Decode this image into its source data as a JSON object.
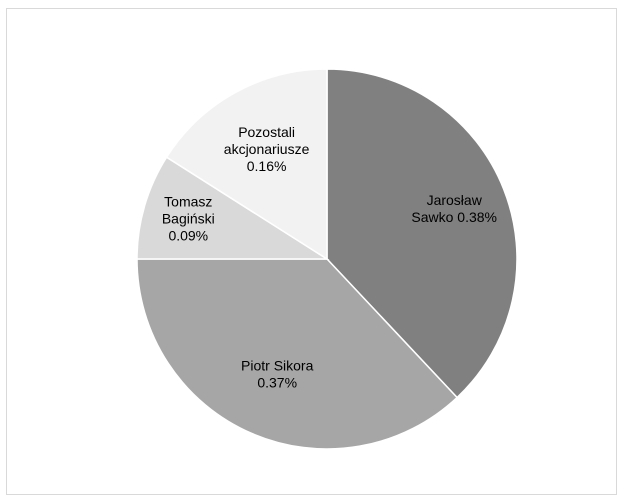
{
  "chart_data": {
    "type": "pie",
    "title": "",
    "categories": [
      "Jarosław Sawko",
      "Piotr Sikora",
      "Tomasz Bagiński",
      "Pozostali akcjonariusze"
    ],
    "values": [
      0.38,
      0.37,
      0.09,
      0.16
    ],
    "unit": "%",
    "colors": [
      "#808080",
      "#a6a6a6",
      "#d9d9d9",
      "#f2f2f2"
    ],
    "slice_border_color": "#ffffff",
    "start": "12 o'clock",
    "direction": "clockwise",
    "legend": "none",
    "data_labels": [
      [
        "Jarosław",
        "Sawko 0.38%"
      ],
      [
        "Piotr Sikora",
        "0.37%"
      ],
      [
        "Tomasz",
        "Bagiński",
        "0.09%"
      ],
      [
        "Pozostali",
        "akcjonariusze",
        "0.16%"
      ]
    ]
  }
}
